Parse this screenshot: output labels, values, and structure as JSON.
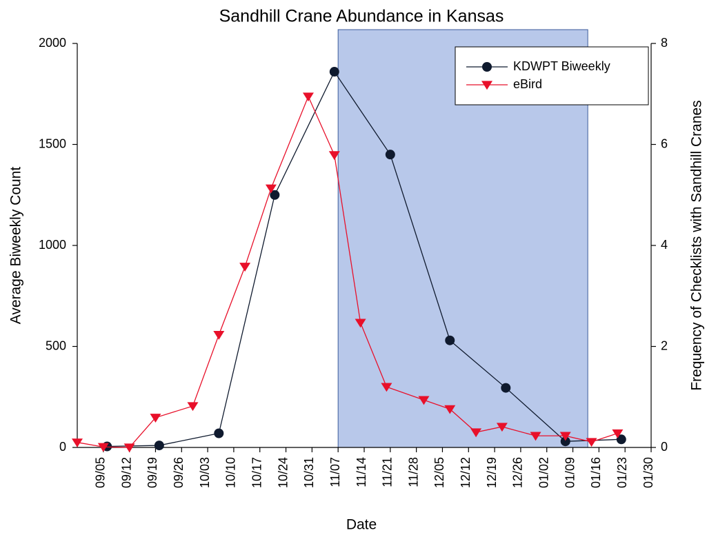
{
  "chart_data": {
    "type": "line",
    "title": "Sandhill Crane Abundance in Kansas",
    "x_label": "Date",
    "y_label": "Average Biweekly Count",
    "y2_label": "Frequency of Checklists with Sandhill Cranes",
    "xlim": [
      "08/29",
      "01/30"
    ],
    "xticks": [
      "09/05",
      "09/12",
      "09/19",
      "09/26",
      "10/03",
      "10/10",
      "10/17",
      "10/24",
      "10/31",
      "11/07",
      "11/14",
      "11/21",
      "11/28",
      "12/05",
      "12/12",
      "12/19",
      "12/26",
      "01/02",
      "01/09",
      "01/16",
      "01/23",
      "01/30"
    ],
    "ylim": [
      0,
      2000
    ],
    "yticks": [
      0,
      500,
      1000,
      1500,
      2000
    ],
    "y2lim": [
      0,
      8
    ],
    "y2ticks": [
      0,
      2,
      4,
      6,
      8
    ],
    "shaded_span": {
      "x": [
        "11/07",
        "01/13"
      ],
      "color": "#b8c8ea"
    },
    "legend": "upper right",
    "series": [
      {
        "name": "KDWPT Biweekly",
        "color": "#0f1a2e",
        "marker": "circle",
        "x": [
          "09/06",
          "09/20",
          "10/06",
          "10/21",
          "11/06",
          "11/21",
          "12/07",
          "12/22",
          "01/07",
          "01/22"
        ],
        "values": [
          5,
          10,
          70,
          1250,
          1860,
          1450,
          530,
          295,
          30,
          40
        ]
      },
      {
        "name": "eBird",
        "color": "#e8102a",
        "marker": "triangle-down",
        "axis": "y2",
        "x": [
          "08/29",
          "09/05",
          "09/12",
          "09/19",
          "09/29",
          "10/06",
          "10/13",
          "10/20",
          "10/30",
          "11/06",
          "11/13",
          "11/20",
          "11/30",
          "12/07",
          "12/14",
          "12/21",
          "12/30",
          "01/07",
          "01/14",
          "01/21"
        ],
        "values": [
          0.1,
          0.01,
          0,
          0.59,
          0.82,
          2.23,
          3.58,
          5.13,
          6.95,
          5.79,
          2.47,
          1.2,
          0.94,
          0.76,
          0.3,
          0.41,
          0.23,
          0.23,
          0.11,
          0.28
        ]
      }
    ]
  }
}
